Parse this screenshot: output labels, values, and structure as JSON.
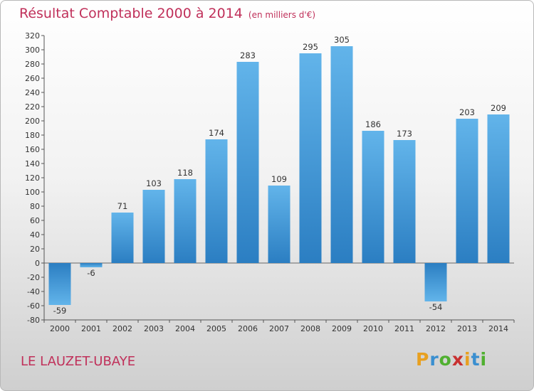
{
  "header": {
    "title": "Résultat Comptable 2000 à 2014",
    "unit": "(en milliers d'€)"
  },
  "footer": {
    "place": "LE LAUZET-UBAYE"
  },
  "logo": {
    "letters": [
      "P",
      "r",
      "o",
      "x",
      "i",
      "t",
      "i"
    ],
    "colors": [
      "#e8a020",
      "#3a8fd0",
      "#50b030",
      "#c83030",
      "#e8a020",
      "#3a8fd0",
      "#50b030"
    ]
  },
  "colors": {
    "bar_top": "#62b4ea",
    "bar_bottom": "#2b7ec2",
    "title": "#c0305a"
  },
  "chart_data": {
    "type": "bar",
    "title": "Résultat Comptable 2000 à 2014",
    "xlabel": "",
    "ylabel": "",
    "categories": [
      "2000",
      "2001",
      "2002",
      "2003",
      "2004",
      "2005",
      "2006",
      "2007",
      "2008",
      "2009",
      "2010",
      "2011",
      "2012",
      "2013",
      "2014"
    ],
    "values": [
      -59,
      -6,
      71,
      103,
      118,
      174,
      283,
      109,
      295,
      305,
      186,
      173,
      -54,
      203,
      209
    ],
    "ylim": [
      -80,
      320
    ],
    "ytick_step": 20,
    "grid": false
  }
}
